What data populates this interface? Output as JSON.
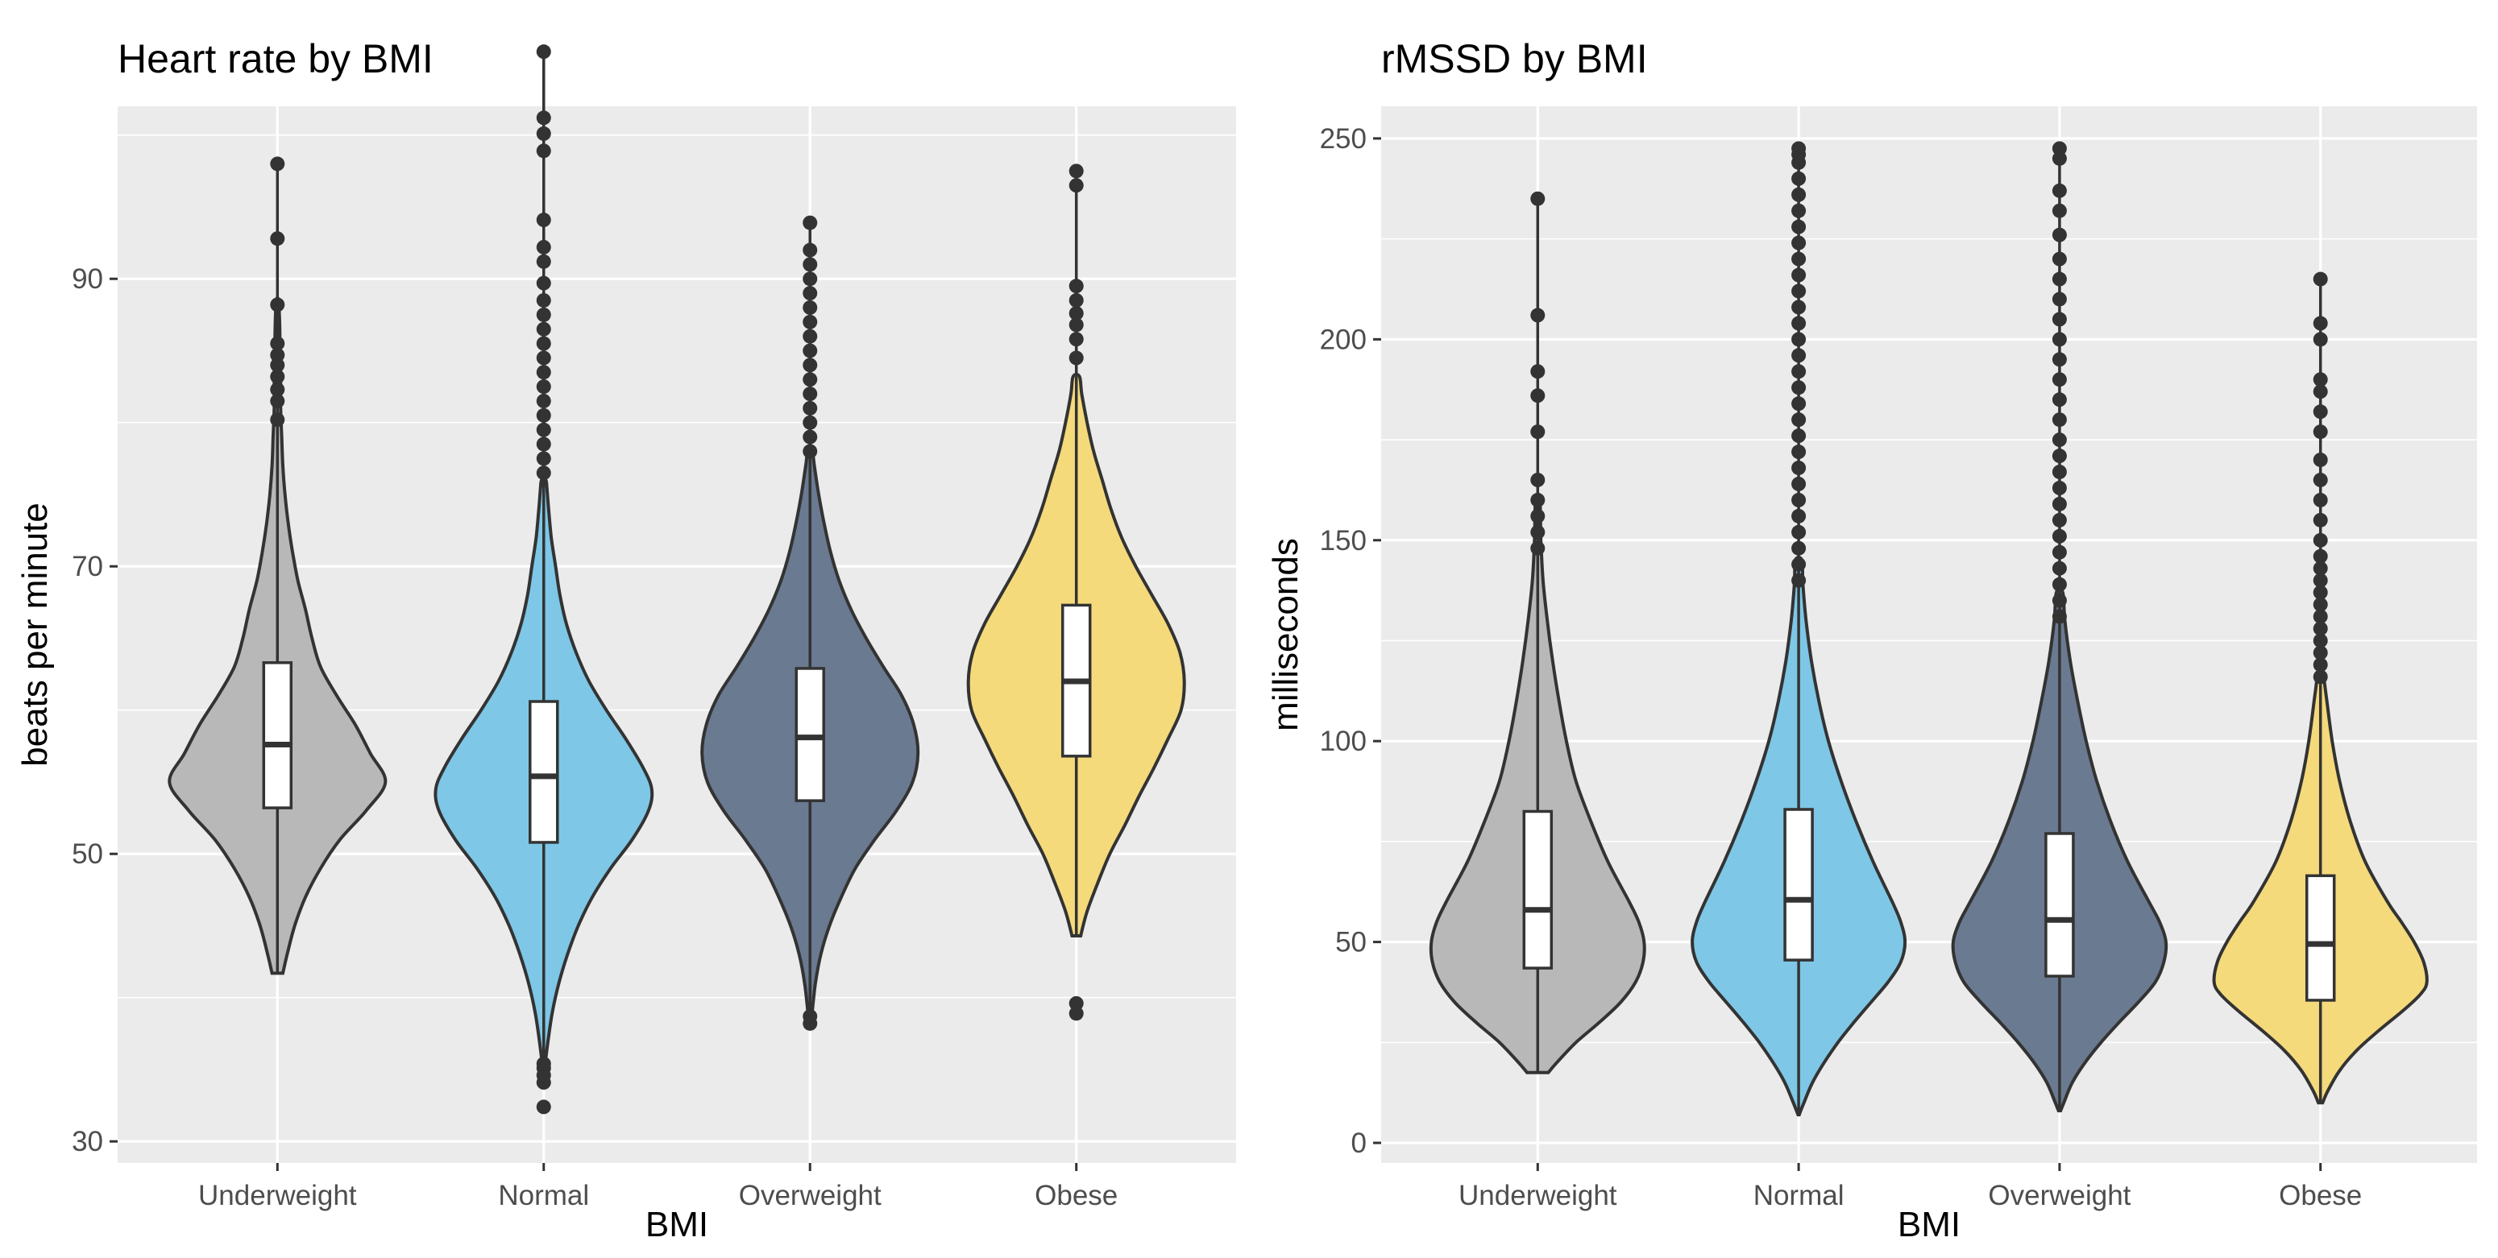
{
  "chart_data": [
    {
      "type": "violin",
      "title": "Heart rate by BMI",
      "xlabel": "BMI",
      "ylabel": "beats per minute",
      "ylim": [
        28.5,
        102
      ],
      "yticks": [
        30,
        50,
        70,
        90
      ],
      "categories": [
        "Underweight",
        "Normal",
        "Overweight",
        "Obese"
      ],
      "colors": [
        "#b8b8b8",
        "#7ec7e6",
        "#6a7a91",
        "#f5da7c"
      ],
      "series": [
        {
          "name": "Underweight",
          "box": {
            "q1": 53.2,
            "median": 57.6,
            "q3": 63.3,
            "lower": 41.7,
            "upper": 79.2
          },
          "density": [
            [
              41.7,
              0.05
            ],
            [
              43,
              0.09
            ],
            [
              45,
              0.16
            ],
            [
              47,
              0.26
            ],
            [
              49,
              0.4
            ],
            [
              51,
              0.58
            ],
            [
              53,
              0.82
            ],
            [
              55,
              1.0
            ],
            [
              57,
              0.86
            ],
            [
              59,
              0.72
            ],
            [
              61,
              0.55
            ],
            [
              63,
              0.4
            ],
            [
              65,
              0.32
            ],
            [
              67,
              0.26
            ],
            [
              69,
              0.19
            ],
            [
              71,
              0.14
            ],
            [
              73,
              0.1
            ],
            [
              75,
              0.07
            ],
            [
              77,
              0.05
            ],
            [
              79,
              0.04
            ],
            [
              81,
              0.03
            ],
            [
              83,
              0.03
            ],
            [
              85,
              0.025
            ],
            [
              87,
              0.02
            ],
            [
              88.5,
              0.01
            ]
          ],
          "outliers": [
            80.2,
            81.5,
            82.3,
            83.2,
            84.0,
            84.7,
            85.5,
            88.2,
            92.8,
            98.0
          ]
        },
        {
          "name": "Normal",
          "box": {
            "q1": 50.8,
            "median": 55.4,
            "q3": 60.6,
            "lower": 35.8,
            "upper": 75.4
          },
          "density": [
            [
              35.8,
              0.02
            ],
            [
              37,
              0.04
            ],
            [
              39,
              0.08
            ],
            [
              41,
              0.14
            ],
            [
              43,
              0.22
            ],
            [
              45,
              0.32
            ],
            [
              47,
              0.45
            ],
            [
              49,
              0.62
            ],
            [
              51,
              0.82
            ],
            [
              53,
              0.97
            ],
            [
              54.5,
              1.0
            ],
            [
              56,
              0.92
            ],
            [
              58,
              0.76
            ],
            [
              60,
              0.58
            ],
            [
              62,
              0.42
            ],
            [
              64,
              0.3
            ],
            [
              66,
              0.21
            ],
            [
              68,
              0.15
            ],
            [
              70,
              0.11
            ],
            [
              72,
              0.07
            ],
            [
              74,
              0.045
            ],
            [
              75.4,
              0.03
            ],
            [
              76,
              0.02
            ]
          ],
          "outliers": [
            32.4,
            34.1,
            34.6,
            35.1,
            35.4,
            76.5,
            77.5,
            78.5,
            79.5,
            80.5,
            81.5,
            82.5,
            83.5,
            84.5,
            85.5,
            86.5,
            87.5,
            88.5,
            89.7,
            91.2,
            92.2,
            94.1,
            98.9,
            100.1,
            101.2,
            105.8
          ]
        },
        {
          "name": "Overweight",
          "box": {
            "q1": 53.7,
            "median": 58.1,
            "q3": 62.9,
            "lower": 39.0,
            "upper": 77.0
          },
          "density": [
            [
              39,
              0.02
            ],
            [
              41,
              0.05
            ],
            [
              43,
              0.1
            ],
            [
              45,
              0.18
            ],
            [
              47,
              0.29
            ],
            [
              49,
              0.42
            ],
            [
              51,
              0.6
            ],
            [
              53,
              0.8
            ],
            [
              55,
              0.95
            ],
            [
              57,
              1.0
            ],
            [
              59,
              0.96
            ],
            [
              61,
              0.85
            ],
            [
              63,
              0.68
            ],
            [
              65,
              0.52
            ],
            [
              67,
              0.38
            ],
            [
              69,
              0.27
            ],
            [
              71,
              0.19
            ],
            [
              73,
              0.13
            ],
            [
              75,
              0.08
            ],
            [
              77,
              0.04
            ],
            [
              78,
              0.02
            ]
          ],
          "outliers": [
            38.2,
            38.7,
            78,
            79,
            80,
            81,
            82,
            83,
            84,
            85,
            86,
            87,
            88,
            89,
            90,
            91,
            92,
            93.9
          ]
        },
        {
          "name": "Obese",
          "box": {
            "q1": 56.8,
            "median": 62.0,
            "q3": 67.3,
            "lower": 44.3,
            "upper": 83.2
          },
          "density": [
            [
              44.3,
              0.04
            ],
            [
              46,
              0.1
            ],
            [
              48,
              0.2
            ],
            [
              50,
              0.31
            ],
            [
              52,
              0.45
            ],
            [
              54,
              0.58
            ],
            [
              56,
              0.72
            ],
            [
              58,
              0.85
            ],
            [
              60,
              0.97
            ],
            [
              62,
              1.0
            ],
            [
              64,
              0.96
            ],
            [
              66,
              0.85
            ],
            [
              68,
              0.7
            ],
            [
              70,
              0.55
            ],
            [
              72,
              0.42
            ],
            [
              74,
              0.32
            ],
            [
              76,
              0.24
            ],
            [
              78,
              0.16
            ],
            [
              80,
              0.1
            ],
            [
              82,
              0.05
            ],
            [
              83.2,
              0.03
            ]
          ],
          "outliers": [
            38.9,
            39.6,
            84.5,
            85.8,
            86.8,
            87.6,
            88.5,
            89.5,
            96.5,
            97.5
          ]
        }
      ]
    },
    {
      "type": "violin",
      "title": "rMSSD by BMI",
      "xlabel": "BMI",
      "ylabel": "milliseconds",
      "ylim": [
        -5,
        258
      ],
      "yticks": [
        0,
        50,
        100,
        150,
        200,
        250
      ],
      "categories": [
        "Underweight",
        "Normal",
        "Overweight",
        "Obese"
      ],
      "colors": [
        "#b8b8b8",
        "#7ec7e6",
        "#6a7a91",
        "#f5da7c"
      ],
      "series": [
        {
          "name": "Underweight",
          "box": {
            "q1": 43.5,
            "median": 58,
            "q3": 82.5,
            "lower": 17.5,
            "upper": 140
          },
          "density": [
            [
              17.5,
              0.1
            ],
            [
              20,
              0.18
            ],
            [
              25,
              0.36
            ],
            [
              30,
              0.58
            ],
            [
              35,
              0.78
            ],
            [
              40,
              0.92
            ],
            [
              45,
              0.99
            ],
            [
              50,
              1.0
            ],
            [
              55,
              0.95
            ],
            [
              60,
              0.86
            ],
            [
              70,
              0.66
            ],
            [
              80,
              0.5
            ],
            [
              90,
              0.36
            ],
            [
              100,
              0.27
            ],
            [
              110,
              0.2
            ],
            [
              120,
              0.14
            ],
            [
              130,
              0.09
            ],
            [
              140,
              0.05
            ],
            [
              150,
              0.03
            ],
            [
              160,
              0.02
            ]
          ],
          "outliers": [
            148,
            152,
            156,
            160,
            165,
            177,
            186,
            192,
            206,
            235
          ]
        },
        {
          "name": "Normal",
          "box": {
            "q1": 45.5,
            "median": 60.5,
            "q3": 83.0,
            "lower": 7,
            "upper": 139
          },
          "density": [
            [
              7,
              0.005
            ],
            [
              10,
              0.05
            ],
            [
              15,
              0.13
            ],
            [
              20,
              0.24
            ],
            [
              25,
              0.37
            ],
            [
              30,
              0.52
            ],
            [
              35,
              0.68
            ],
            [
              40,
              0.84
            ],
            [
              45,
              0.96
            ],
            [
              50,
              1.0
            ],
            [
              55,
              0.96
            ],
            [
              60,
              0.88
            ],
            [
              70,
              0.7
            ],
            [
              80,
              0.54
            ],
            [
              90,
              0.4
            ],
            [
              100,
              0.28
            ],
            [
              110,
              0.19
            ],
            [
              120,
              0.12
            ],
            [
              130,
              0.07
            ],
            [
              139,
              0.04
            ],
            [
              145,
              0.03
            ]
          ],
          "outliers": [
            140,
            144,
            148,
            152,
            156,
            160,
            164,
            168,
            172,
            176,
            180,
            184,
            188,
            192,
            196,
            200,
            204,
            208,
            212,
            216,
            220,
            224,
            228,
            232,
            236,
            240,
            244,
            246,
            247.5
          ]
        },
        {
          "name": "Overweight",
          "box": {
            "q1": 41.5,
            "median": 55.5,
            "q3": 77.0,
            "lower": 8,
            "upper": 130
          },
          "density": [
            [
              8,
              0.01
            ],
            [
              10,
              0.04
            ],
            [
              15,
              0.12
            ],
            [
              20,
              0.24
            ],
            [
              25,
              0.39
            ],
            [
              30,
              0.56
            ],
            [
              35,
              0.74
            ],
            [
              40,
              0.9
            ],
            [
              45,
              0.98
            ],
            [
              50,
              1.0
            ],
            [
              55,
              0.94
            ],
            [
              60,
              0.84
            ],
            [
              70,
              0.64
            ],
            [
              80,
              0.48
            ],
            [
              90,
              0.35
            ],
            [
              100,
              0.25
            ],
            [
              110,
              0.17
            ],
            [
              120,
              0.1
            ],
            [
              130,
              0.05
            ],
            [
              137,
              0.03
            ]
          ],
          "outliers": [
            131,
            135,
            139,
            143,
            147,
            151,
            155,
            159,
            163,
            167,
            171,
            175,
            180,
            185,
            190,
            195,
            200,
            205,
            210,
            215,
            220,
            226,
            232,
            237,
            245,
            247.5
          ]
        },
        {
          "name": "Obese",
          "box": {
            "q1": 35.5,
            "median": 49.5,
            "q3": 66.5,
            "lower": 10,
            "upper": 114
          },
          "density": [
            [
              10,
              0.02
            ],
            [
              13,
              0.07
            ],
            [
              18,
              0.18
            ],
            [
              23,
              0.34
            ],
            [
              28,
              0.55
            ],
            [
              33,
              0.78
            ],
            [
              37,
              0.94
            ],
            [
              40,
              1.0
            ],
            [
              45,
              0.97
            ],
            [
              50,
              0.88
            ],
            [
              55,
              0.76
            ],
            [
              60,
              0.63
            ],
            [
              70,
              0.42
            ],
            [
              80,
              0.28
            ],
            [
              90,
              0.18
            ],
            [
              100,
              0.11
            ],
            [
              110,
              0.06
            ],
            [
              114,
              0.04
            ],
            [
              118,
              0.02
            ]
          ],
          "outliers": [
            116,
            119,
            122,
            125,
            128,
            131,
            134,
            137,
            140,
            143,
            146,
            150,
            155,
            160,
            165,
            170,
            177,
            182,
            187,
            190,
            200,
            204,
            215
          ]
        }
      ]
    }
  ]
}
